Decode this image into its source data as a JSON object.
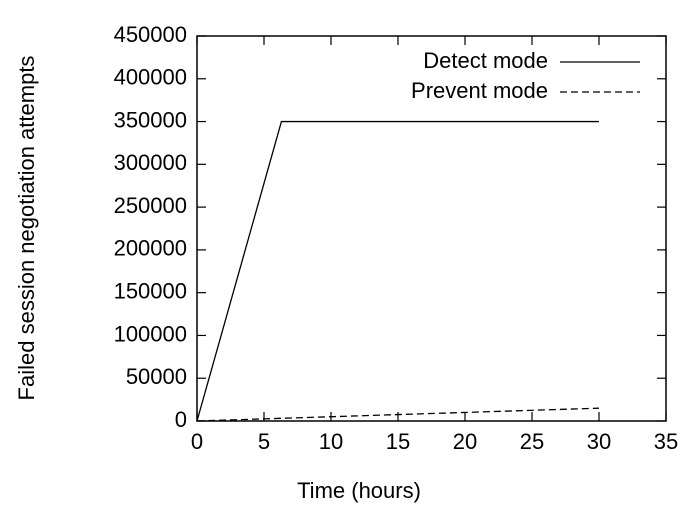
{
  "chart_data": {
    "type": "line",
    "xlabel": "Time (hours)",
    "ylabel": "Failed session negotiation attempts",
    "series": [
      {
        "name": "Detect mode",
        "color": "#000000",
        "line_style": "solid",
        "x": [
          0,
          6.3,
          30
        ],
        "values": [
          0,
          350000,
          350000
        ]
      },
      {
        "name": "Prevent mode",
        "color": "#000000",
        "line_style": "dashed",
        "x": [
          0,
          30
        ],
        "values": [
          0,
          15000
        ]
      }
    ],
    "xlim": [
      0,
      35
    ],
    "xticks": [
      0,
      5,
      10,
      15,
      20,
      25,
      30,
      35
    ],
    "ylim": [
      0,
      450000
    ],
    "yticks": [
      0,
      50000,
      100000,
      150000,
      200000,
      250000,
      300000,
      350000,
      400000,
      450000
    ],
    "legend": "top-right",
    "grid": false
  }
}
